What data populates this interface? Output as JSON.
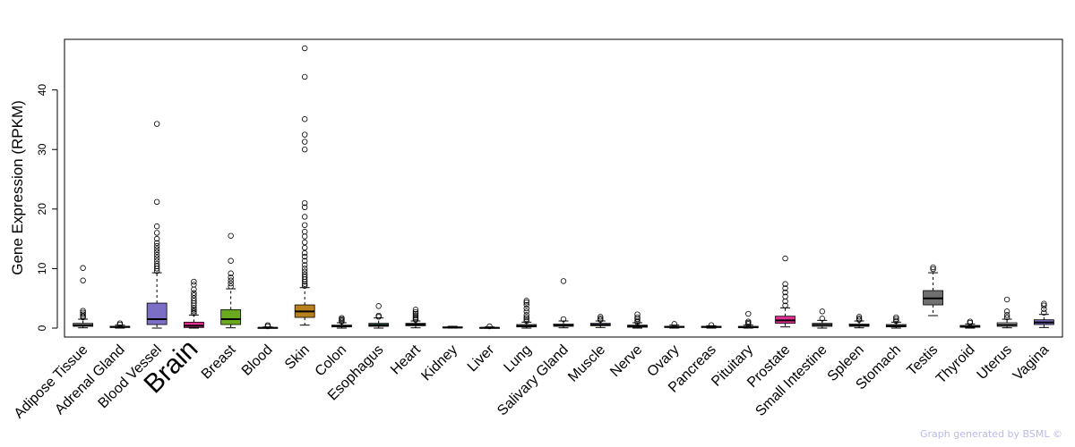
{
  "chart_data": {
    "type": "box",
    "ylabel": "Gene Expression (RPKM)",
    "ylim": [
      -1.5,
      48.5
    ],
    "yticks": [
      0,
      10,
      20,
      30,
      40
    ],
    "highlight": "Brain",
    "highlight_color": "#ff0000",
    "categories": [
      {
        "name": "Adipose Tissue",
        "color": "#d9d9d9",
        "q1": 0.3,
        "median": 0.5,
        "q3": 0.8,
        "wlo": 0.05,
        "whi": 1.5,
        "outliers": [
          1.8,
          2.0,
          2.3,
          2.6,
          2.9,
          8.0,
          10.1
        ]
      },
      {
        "name": "Adrenal Gland",
        "color": "#d9d9d9",
        "q1": 0.1,
        "median": 0.2,
        "q3": 0.3,
        "wlo": 0.0,
        "whi": 0.5,
        "outliers": [
          0.6,
          0.8
        ]
      },
      {
        "name": "Blood Vessel",
        "color": "#7a6fc4",
        "q1": 0.6,
        "median": 1.5,
        "q3": 4.2,
        "wlo": 0.0,
        "whi": 9.3,
        "outliers": [
          9.6,
          10.0,
          10.4,
          10.8,
          11.3,
          11.8,
          12.3,
          12.8,
          13.3,
          13.8,
          14.3,
          15.0,
          16.0,
          17.1,
          21.2,
          34.3
        ]
      },
      {
        "name": "Brain",
        "color": "#e0308f",
        "q1": 0.1,
        "median": 0.4,
        "q3": 1.0,
        "wlo": 0.0,
        "whi": 2.2,
        "outliers": [
          2.5,
          2.8,
          3.1,
          3.4,
          3.8,
          4.2,
          4.6,
          5.0,
          5.5,
          5.9,
          6.5,
          7.3,
          7.8
        ]
      },
      {
        "name": "Breast",
        "color": "#6aaa1e",
        "q1": 0.6,
        "median": 1.5,
        "q3": 3.1,
        "wlo": 0.05,
        "whi": 6.6,
        "outliers": [
          7.0,
          7.5,
          8.0,
          8.5,
          9.2,
          11.3,
          15.5
        ]
      },
      {
        "name": "Blood",
        "color": "#d9d9d9",
        "q1": 0.0,
        "median": 0.05,
        "q3": 0.1,
        "wlo": 0.0,
        "whi": 0.2,
        "outliers": [
          0.3,
          0.5
        ]
      },
      {
        "name": "Skin",
        "color": "#b8801e",
        "q1": 1.8,
        "median": 2.8,
        "q3": 3.9,
        "wlo": 0.5,
        "whi": 6.8,
        "outliers": [
          7.1,
          7.4,
          7.8,
          8.2,
          8.6,
          9.0,
          9.5,
          10.0,
          10.6,
          11.3,
          12.0,
          12.6,
          13.5,
          14.4,
          15.4,
          16.2,
          17.3,
          18.7,
          20.3,
          21.0,
          30.0,
          31.3,
          32.5,
          35.1,
          42.2,
          47.0
        ]
      },
      {
        "name": "Colon",
        "color": "#d9d9d9",
        "q1": 0.2,
        "median": 0.35,
        "q3": 0.5,
        "wlo": 0.0,
        "whi": 0.9,
        "outliers": [
          1.1,
          1.3,
          1.5,
          1.7
        ]
      },
      {
        "name": "Esophagus",
        "color": "#3c8a6a",
        "q1": 0.3,
        "median": 0.5,
        "q3": 0.8,
        "wlo": 0.0,
        "whi": 1.7,
        "outliers": [
          1.9,
          2.1,
          3.7
        ]
      },
      {
        "name": "Heart",
        "color": "#7a4a9c",
        "q1": 0.4,
        "median": 0.6,
        "q3": 0.8,
        "wlo": 0.05,
        "whi": 1.2,
        "outliers": [
          1.4,
          1.6,
          1.8,
          2.1,
          2.4,
          2.7,
          3.1
        ]
      },
      {
        "name": "Kidney",
        "color": "#d9d9d9",
        "q1": 0.05,
        "median": 0.1,
        "q3": 0.2,
        "wlo": 0.0,
        "whi": 0.3,
        "outliers": []
      },
      {
        "name": "Liver",
        "color": "#d9d9d9",
        "q1": 0.0,
        "median": 0.05,
        "q3": 0.1,
        "wlo": 0.0,
        "whi": 0.2,
        "outliers": [
          0.3
        ]
      },
      {
        "name": "Lung",
        "color": "#d9d9d9",
        "q1": 0.2,
        "median": 0.35,
        "q3": 0.6,
        "wlo": 0.0,
        "whi": 1.0,
        "outliers": [
          1.2,
          1.5,
          1.8,
          2.2,
          2.8,
          3.3,
          3.9,
          4.3,
          4.6
        ]
      },
      {
        "name": "Salivary Gland",
        "color": "#d9d9d9",
        "q1": 0.3,
        "median": 0.45,
        "q3": 0.7,
        "wlo": 0.05,
        "whi": 1.2,
        "outliers": [
          1.5,
          7.9
        ]
      },
      {
        "name": "Muscle",
        "color": "#7a6fc4",
        "q1": 0.4,
        "median": 0.55,
        "q3": 0.8,
        "wlo": 0.1,
        "whi": 1.2,
        "outliers": [
          1.4,
          1.6,
          1.9
        ]
      },
      {
        "name": "Nerve",
        "color": "#d9d9d9",
        "q1": 0.15,
        "median": 0.3,
        "q3": 0.5,
        "wlo": 0.0,
        "whi": 0.9,
        "outliers": [
          1.0,
          1.2,
          1.5,
          1.8,
          2.3
        ]
      },
      {
        "name": "Ovary",
        "color": "#d9d9d9",
        "q1": 0.1,
        "median": 0.2,
        "q3": 0.3,
        "wlo": 0.0,
        "whi": 0.5,
        "outliers": [
          0.7
        ]
      },
      {
        "name": "Pancreas",
        "color": "#d9d9d9",
        "q1": 0.1,
        "median": 0.2,
        "q3": 0.3,
        "wlo": 0.0,
        "whi": 0.4,
        "outliers": [
          0.5
        ]
      },
      {
        "name": "Pituitary",
        "color": "#d9d9d9",
        "q1": 0.05,
        "median": 0.15,
        "q3": 0.3,
        "wlo": 0.0,
        "whi": 0.5,
        "outliers": [
          0.7,
          0.9,
          1.1,
          2.4
        ]
      },
      {
        "name": "Prostate",
        "color": "#e0308f",
        "q1": 0.8,
        "median": 1.3,
        "q3": 2.0,
        "wlo": 0.2,
        "whi": 3.4,
        "outliers": [
          3.8,
          4.5,
          5.3,
          6.0,
          6.7,
          7.4,
          11.7
        ]
      },
      {
        "name": "Small Intestine",
        "color": "#d9d9d9",
        "q1": 0.3,
        "median": 0.55,
        "q3": 0.8,
        "wlo": 0.0,
        "whi": 1.3,
        "outliers": [
          1.6,
          2.8
        ]
      },
      {
        "name": "Spleen",
        "color": "#d9d9d9",
        "q1": 0.3,
        "median": 0.45,
        "q3": 0.7,
        "wlo": 0.05,
        "whi": 1.2,
        "outliers": [
          1.4,
          1.6,
          1.9
        ]
      },
      {
        "name": "Stomach",
        "color": "#d9d9d9",
        "q1": 0.2,
        "median": 0.35,
        "q3": 0.6,
        "wlo": 0.0,
        "whi": 1.0,
        "outliers": [
          1.2,
          1.5,
          1.8
        ]
      },
      {
        "name": "Testis",
        "color": "#707070",
        "q1": 3.9,
        "median": 5.0,
        "q3": 6.3,
        "wlo": 2.1,
        "whi": 9.3,
        "outliers": [
          9.9,
          10.2
        ]
      },
      {
        "name": "Thyroid",
        "color": "#d9d9d9",
        "q1": 0.15,
        "median": 0.25,
        "q3": 0.45,
        "wlo": 0.0,
        "whi": 0.7,
        "outliers": [
          0.9,
          1.1
        ]
      },
      {
        "name": "Uterus",
        "color": "#d9d9d9",
        "q1": 0.3,
        "median": 0.55,
        "q3": 0.9,
        "wlo": 0.05,
        "whi": 1.5,
        "outliers": [
          1.8,
          2.2,
          2.8,
          4.8
        ]
      },
      {
        "name": "Vagina",
        "color": "#7a6fc4",
        "q1": 0.6,
        "median": 0.95,
        "q3": 1.4,
        "wlo": 0.1,
        "whi": 2.3,
        "outliers": [
          2.6,
          3.2,
          3.8,
          4.1
        ]
      }
    ]
  },
  "credit": "Graph generated by BSML ©"
}
